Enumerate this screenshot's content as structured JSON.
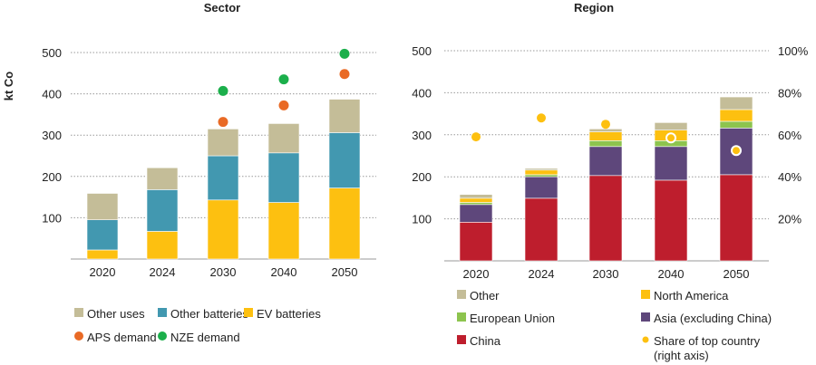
{
  "chart_data": [
    {
      "type": "bar",
      "stacked": true,
      "title": "Sector",
      "ylabel": "kt Co",
      "ylim": [
        0,
        500
      ],
      "yticks": [
        "100",
        "200",
        "300",
        "400",
        "500"
      ],
      "grid": true,
      "categories": [
        "2020",
        "2024",
        "2030",
        "2040",
        "2050"
      ],
      "series": [
        {
          "name": "EV batteries",
          "color": "#FDC010",
          "values": [
            22,
            67,
            143,
            137,
            172
          ]
        },
        {
          "name": "Other batteries",
          "color": "#4298B0",
          "values": [
            73,
            101,
            107,
            120,
            134
          ]
        },
        {
          "name": "Other uses",
          "color": "#C4BD98",
          "values": [
            64,
            53,
            65,
            71,
            81
          ]
        }
      ],
      "markers": [
        {
          "name": "APS demand",
          "color": "#E96A25",
          "values": [
            null,
            null,
            332,
            372,
            448
          ]
        },
        {
          "name": "NZE demand",
          "color": "#1BAF4B",
          "values": [
            null,
            null,
            407,
            435,
            497
          ]
        }
      ],
      "legend_order": [
        "Other uses",
        "Other batteries",
        "EV batteries",
        "APS demand",
        "NZE demand"
      ],
      "legend": "bottom"
    },
    {
      "type": "bar",
      "stacked": true,
      "title": "Region",
      "ylim": [
        0,
        500
      ],
      "yticks": [
        "100",
        "200",
        "300",
        "400",
        "500"
      ],
      "y2lim": [
        0,
        100
      ],
      "y2ticks": [
        "20%",
        "40%",
        "60%",
        "80%",
        "100%"
      ],
      "grid": true,
      "categories": [
        "2020",
        "2024",
        "2030",
        "2040",
        "2050"
      ],
      "series": [
        {
          "name": "China",
          "color": "#BE1E2D",
          "values": [
            92,
            149,
            203,
            192,
            205
          ]
        },
        {
          "name": "Asia (excluding China)",
          "color": "#5E477B",
          "values": [
            42,
            51,
            69,
            80,
            111
          ]
        },
        {
          "name": "European Union",
          "color": "#8DC44E",
          "values": [
            5,
            5,
            14,
            14,
            16
          ]
        },
        {
          "name": "North America",
          "color": "#FDC010",
          "values": [
            10,
            11,
            21,
            25,
            28
          ]
        },
        {
          "name": "Other",
          "color": "#C4BD98",
          "values": [
            9,
            4,
            7,
            18,
            30
          ]
        }
      ],
      "markers": [
        {
          "name": "Share of top country (right axis)",
          "color": "#FDC010",
          "axis": "right",
          "unit": "%",
          "values": [
            59,
            68,
            65,
            58.5,
            52.5
          ]
        }
      ],
      "legend_order": [
        "Other",
        "North America",
        "European Union",
        "Asia (excluding China)",
        "China",
        "Share of top country (right axis)"
      ],
      "legend": "bottom"
    }
  ]
}
